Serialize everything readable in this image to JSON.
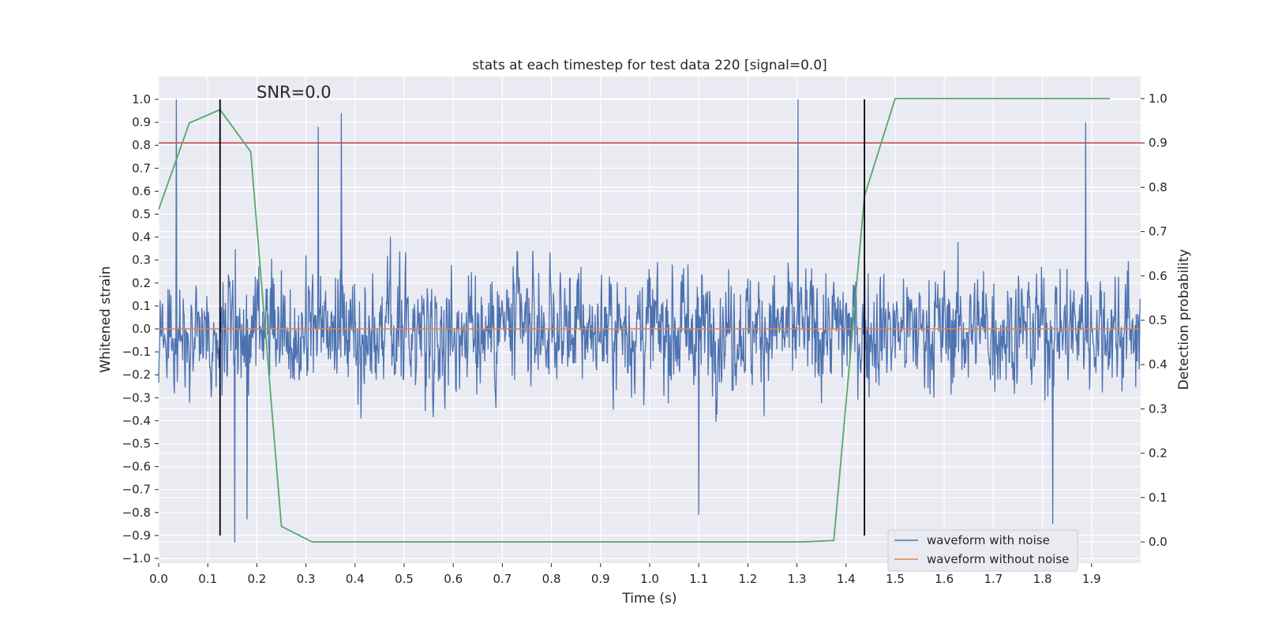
{
  "chart_data": {
    "type": "line",
    "title": "stats at each timestep for test data 220 [signal=0.0]",
    "xlabel": "Time (s)",
    "ylabel": "Whitened strain",
    "y2label": "Detection probability",
    "xlim": [
      0.0,
      2.0
    ],
    "ylim": [
      -1.02,
      1.1
    ],
    "y2lim": [
      -0.045,
      1.09
    ],
    "xticks": [
      0.0,
      0.1,
      0.2,
      0.3,
      0.4,
      0.5,
      0.6,
      0.7,
      0.8,
      0.9,
      1.0,
      1.1,
      1.2,
      1.3,
      1.4,
      1.5,
      1.6,
      1.7,
      1.8,
      1.9
    ],
    "xtick_labels": [
      "0.0",
      "0.1",
      "0.2",
      "0.3",
      "0.4",
      "0.5",
      "0.6",
      "0.7",
      "0.8",
      "0.9",
      "1.0",
      "1.1",
      "1.2",
      "1.3",
      "1.4",
      "1.5",
      "1.6",
      "1.7",
      "1.8",
      "1.9"
    ],
    "yticks": [
      -1.0,
      -0.9,
      -0.8,
      -0.7,
      -0.6,
      -0.5,
      -0.4,
      -0.3,
      -0.2,
      -0.1,
      0.0,
      0.1,
      0.2,
      0.3,
      0.4,
      0.5,
      0.6,
      0.7,
      0.8,
      0.9,
      1.0
    ],
    "ytick_labels": [
      "−1.0",
      "−0.9",
      "−0.8",
      "−0.7",
      "−0.6",
      "−0.5",
      "−0.4",
      "−0.3",
      "−0.2",
      "−0.1",
      "0.0",
      "0.1",
      "0.2",
      "0.3",
      "0.4",
      "0.5",
      "0.6",
      "0.7",
      "0.8",
      "0.9",
      "1.0"
    ],
    "y2ticks": [
      0.0,
      0.1,
      0.2,
      0.3,
      0.4,
      0.5,
      0.6,
      0.7,
      0.8,
      0.9,
      1.0
    ],
    "y2tick_labels": [
      "0.0",
      "0.1",
      "0.2",
      "0.3",
      "0.4",
      "0.5",
      "0.6",
      "0.7",
      "0.8",
      "0.9",
      "1.0"
    ],
    "grid": true,
    "legend_position": "bottom-right",
    "annotation": "SNR=0.0",
    "series": [
      {
        "name": "waveform with noise",
        "color": "#4c72b0",
        "axis": "left",
        "sample_count": 2000,
        "x_range": [
          0.0,
          1.999
        ],
        "approx_min": -0.93,
        "approx_max": 1.0,
        "peaks": [
          {
            "x": 0.036,
            "y": 1.0
          },
          {
            "x": 1.302,
            "y": 1.0
          },
          {
            "x": 0.372,
            "y": 0.94
          },
          {
            "x": 1.888,
            "y": 0.9
          },
          {
            "x": 0.325,
            "y": 0.88
          },
          {
            "x": 0.155,
            "y": -0.93
          },
          {
            "x": 1.821,
            "y": -0.85
          },
          {
            "x": 1.1,
            "y": -0.81
          },
          {
            "x": 0.18,
            "y": -0.83
          }
        ]
      },
      {
        "name": "waveform without noise",
        "color": "#dd8452",
        "axis": "left",
        "x": [
          0.0,
          2.0
        ],
        "y": [
          0.0,
          0.0
        ]
      },
      {
        "color": "#55a868",
        "axis": "right",
        "x": [
          0.0,
          0.0625,
          0.125,
          0.1875,
          0.25,
          0.3125,
          0.375,
          1.3125,
          1.375,
          1.4375,
          1.5,
          1.5625,
          1.9375
        ],
        "y": [
          0.75,
          0.945,
          0.975,
          0.88,
          0.035,
          0.0,
          0.0,
          0.0,
          0.003,
          0.78,
          1.0,
          1.0,
          1.0
        ]
      }
    ],
    "threshold_line": {
      "axis": "right",
      "y": 0.9,
      "color": "#c44e52"
    },
    "vertical_markers": [
      {
        "x": 0.125,
        "color": "#000000"
      },
      {
        "x": 1.4375,
        "color": "#000000"
      }
    ]
  }
}
